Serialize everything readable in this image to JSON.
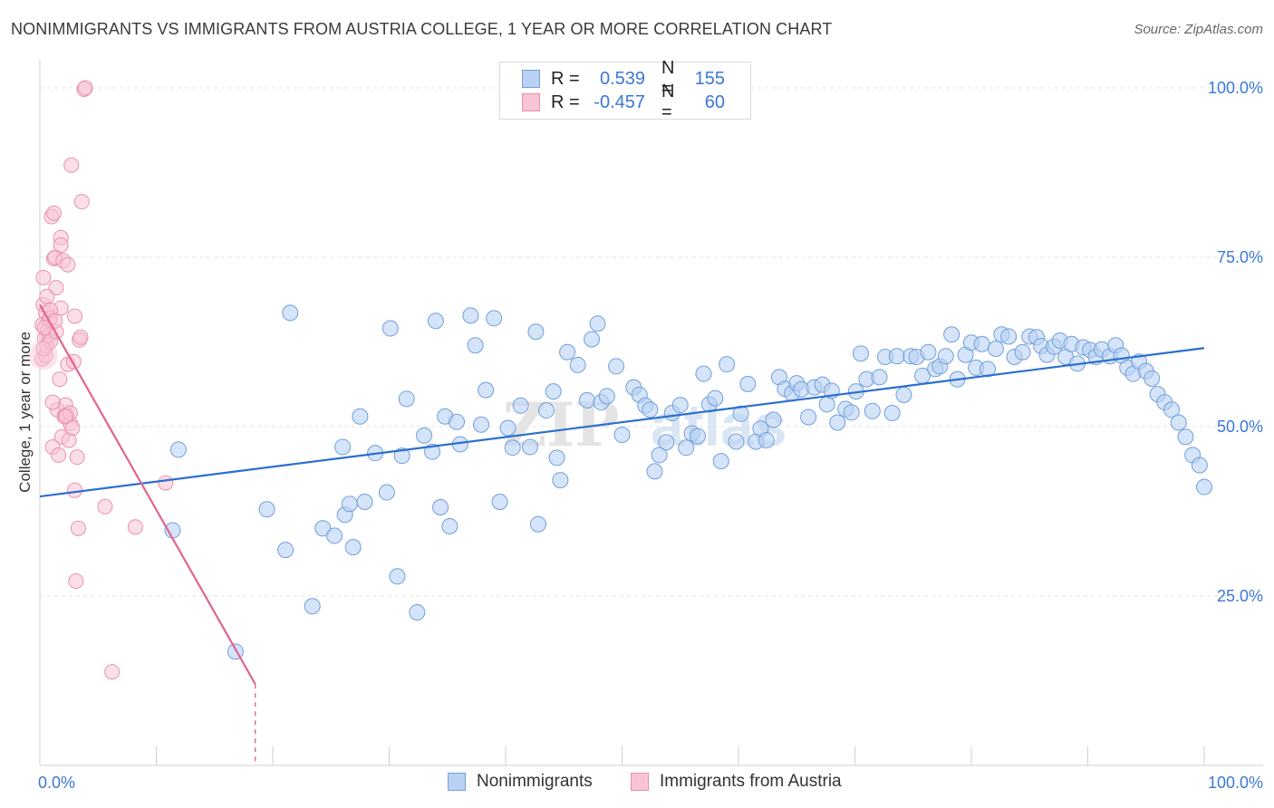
{
  "title": "NONIMMIGRANTS VS IMMIGRANTS FROM AUSTRIA COLLEGE, 1 YEAR OR MORE CORRELATION CHART",
  "source": "Source: ZipAtlas.com",
  "watermark": "ZIPatlas",
  "colors": {
    "blue_fill": "#b9d2f3",
    "blue_stroke": "#6f9fdc",
    "blue_line": "#2a6fce",
    "pink_fill": "#f8c4d4",
    "pink_stroke": "#ec8fae",
    "pink_line": "#e0648f",
    "value_text": "#3b78d8"
  },
  "legend": {
    "rows": [
      {
        "r_label": "R =",
        "r_value": "0.539",
        "n_label": "N =",
        "n_value": "155"
      },
      {
        "r_label": "R =",
        "r_value": "-0.457",
        "n_label": "N =",
        "n_value": "60"
      }
    ]
  },
  "bottom_legend": {
    "items": [
      "Nonimmigrants",
      "Immigrants from Austria"
    ]
  },
  "chart_data": {
    "type": "scatter",
    "title": "NONIMMIGRANTS VS IMMIGRANTS FROM AUSTRIA COLLEGE, 1 YEAR OR MORE CORRELATION CHART",
    "xlabel": "",
    "ylabel": "College, 1 year or more",
    "xlim": [
      0,
      100
    ],
    "ylim": [
      0,
      102
    ],
    "x_tick_labels": [
      "0.0%",
      "100.0%"
    ],
    "y_tick_labels": [
      "25.0%",
      "50.0%",
      "75.0%",
      "100.0%"
    ],
    "y_ticks": [
      25,
      50,
      75,
      100
    ],
    "grid": true,
    "series": [
      {
        "name": "Nonimmigrants",
        "r": 0.539,
        "n": 155,
        "trend": {
          "x0": 0,
          "y0": 39.7,
          "x1": 100,
          "y1": 61.6
        },
        "points": [
          [
            11.4,
            34.7
          ],
          [
            11.9,
            46.6
          ],
          [
            16.8,
            16.8
          ],
          [
            19.5,
            37.8
          ],
          [
            21.1,
            31.8
          ],
          [
            21.5,
            66.8
          ],
          [
            23.4,
            23.5
          ],
          [
            24.3,
            35.0
          ],
          [
            25.3,
            33.9
          ],
          [
            26.0,
            47.0
          ],
          [
            26.2,
            37.0
          ],
          [
            26.6,
            38.6
          ],
          [
            26.9,
            32.2
          ],
          [
            27.5,
            51.5
          ],
          [
            27.9,
            38.9
          ],
          [
            28.8,
            46.1
          ],
          [
            29.8,
            40.3
          ],
          [
            30.1,
            64.5
          ],
          [
            30.7,
            27.9
          ],
          [
            31.1,
            45.7
          ],
          [
            31.5,
            54.1
          ],
          [
            32.4,
            22.6
          ],
          [
            33.0,
            48.7
          ],
          [
            33.7,
            46.3
          ],
          [
            34.0,
            65.6
          ],
          [
            34.4,
            38.1
          ],
          [
            34.8,
            51.5
          ],
          [
            35.2,
            35.3
          ],
          [
            35.8,
            50.7
          ],
          [
            36.1,
            47.4
          ],
          [
            37.0,
            66.4
          ],
          [
            37.4,
            62.0
          ],
          [
            37.9,
            50.3
          ],
          [
            38.3,
            55.4
          ],
          [
            39.0,
            66.0
          ],
          [
            39.5,
            38.9
          ],
          [
            40.2,
            49.8
          ],
          [
            40.6,
            46.9
          ],
          [
            41.3,
            53.1
          ],
          [
            42.1,
            47.0
          ],
          [
            42.6,
            64.0
          ],
          [
            42.8,
            35.6
          ],
          [
            43.5,
            52.4
          ],
          [
            44.1,
            55.2
          ],
          [
            44.4,
            45.4
          ],
          [
            44.7,
            42.1
          ],
          [
            45.3,
            61.0
          ],
          [
            46.2,
            59.1
          ],
          [
            47.0,
            53.9
          ],
          [
            47.4,
            62.9
          ],
          [
            47.9,
            65.2
          ],
          [
            48.2,
            53.6
          ],
          [
            48.7,
            54.5
          ],
          [
            49.5,
            58.9
          ],
          [
            50.0,
            48.8
          ],
          [
            51.0,
            55.8
          ],
          [
            51.5,
            54.7
          ],
          [
            52.0,
            53.1
          ],
          [
            52.4,
            52.5
          ],
          [
            52.8,
            43.4
          ],
          [
            53.2,
            45.8
          ],
          [
            53.8,
            47.7
          ],
          [
            54.3,
            52.0
          ],
          [
            55.0,
            53.2
          ],
          [
            55.5,
            46.9
          ],
          [
            56.0,
            49.0
          ],
          [
            56.5,
            48.6
          ],
          [
            57.0,
            57.8
          ],
          [
            57.5,
            53.3
          ],
          [
            58.0,
            54.2
          ],
          [
            58.5,
            44.9
          ],
          [
            59.0,
            59.2
          ],
          [
            59.8,
            47.8
          ],
          [
            60.2,
            51.9
          ],
          [
            60.8,
            56.3
          ],
          [
            61.5,
            47.8
          ],
          [
            61.9,
            49.7
          ],
          [
            62.4,
            48.0
          ],
          [
            63.0,
            51.0
          ],
          [
            63.5,
            57.3
          ],
          [
            64.0,
            55.6
          ],
          [
            64.6,
            54.9
          ],
          [
            65.0,
            56.4
          ],
          [
            65.4,
            55.5
          ],
          [
            66.0,
            51.4
          ],
          [
            66.5,
            55.8
          ],
          [
            67.2,
            56.2
          ],
          [
            67.6,
            53.3
          ],
          [
            68.0,
            55.3
          ],
          [
            68.5,
            50.6
          ],
          [
            69.2,
            52.6
          ],
          [
            69.7,
            52.1
          ],
          [
            70.1,
            55.2
          ],
          [
            70.5,
            60.8
          ],
          [
            71.0,
            57.0
          ],
          [
            71.5,
            52.3
          ],
          [
            72.1,
            57.3
          ],
          [
            72.6,
            60.3
          ],
          [
            73.2,
            52.0
          ],
          [
            73.6,
            60.4
          ],
          [
            74.2,
            54.7
          ],
          [
            74.8,
            60.4
          ],
          [
            75.3,
            60.3
          ],
          [
            75.8,
            57.5
          ],
          [
            76.3,
            61.0
          ],
          [
            76.9,
            58.5
          ],
          [
            77.3,
            58.9
          ],
          [
            77.8,
            60.4
          ],
          [
            78.3,
            63.6
          ],
          [
            78.8,
            57.0
          ],
          [
            79.5,
            60.6
          ],
          [
            80.0,
            62.4
          ],
          [
            80.4,
            58.7
          ],
          [
            80.9,
            62.2
          ],
          [
            81.4,
            58.5
          ],
          [
            82.1,
            61.5
          ],
          [
            82.6,
            63.6
          ],
          [
            83.2,
            63.3
          ],
          [
            83.7,
            60.3
          ],
          [
            84.4,
            61.0
          ],
          [
            85.0,
            63.3
          ],
          [
            85.6,
            63.2
          ],
          [
            86.0,
            61.9
          ],
          [
            86.5,
            60.6
          ],
          [
            87.1,
            61.8
          ],
          [
            87.6,
            62.7
          ],
          [
            88.1,
            60.3
          ],
          [
            88.6,
            62.2
          ],
          [
            89.1,
            59.3
          ],
          [
            89.6,
            61.7
          ],
          [
            90.2,
            61.3
          ],
          [
            90.7,
            60.3
          ],
          [
            91.2,
            61.4
          ],
          [
            91.9,
            60.4
          ],
          [
            92.4,
            62.0
          ],
          [
            92.9,
            60.5
          ],
          [
            93.4,
            58.7
          ],
          [
            93.9,
            57.8
          ],
          [
            94.4,
            59.6
          ],
          [
            95.0,
            58.2
          ],
          [
            95.5,
            57.1
          ],
          [
            96.0,
            54.8
          ],
          [
            96.6,
            53.6
          ],
          [
            97.2,
            52.5
          ],
          [
            97.8,
            50.6
          ],
          [
            98.4,
            48.5
          ],
          [
            99.0,
            45.8
          ],
          [
            99.6,
            44.3
          ],
          [
            100.0,
            41.1
          ]
        ]
      },
      {
        "name": "Immigrants from Austria",
        "r": -0.457,
        "n": 60,
        "trend": {
          "x0": 0,
          "y0": 68.0,
          "x1": 18.5,
          "y1": 12.0,
          "dash_to_x": 18.5,
          "dash_to_y": 0
        },
        "points": [
          [
            0.2,
            60.0
          ],
          [
            0.2,
            65.0
          ],
          [
            0.3,
            72.0
          ],
          [
            0.3,
            68.0
          ],
          [
            0.4,
            63.0
          ],
          [
            0.5,
            66.8
          ],
          [
            0.6,
            62.0
          ],
          [
            0.7,
            64.2
          ],
          [
            0.8,
            65.8
          ],
          [
            0.8,
            63.5
          ],
          [
            0.9,
            62.6
          ],
          [
            0.9,
            66.0
          ],
          [
            1.0,
            81.0
          ],
          [
            1.1,
            47.0
          ],
          [
            1.2,
            81.5
          ],
          [
            1.2,
            74.8
          ],
          [
            1.3,
            75.0
          ],
          [
            1.4,
            64.0
          ],
          [
            1.4,
            70.5
          ],
          [
            1.5,
            52.5
          ],
          [
            1.6,
            45.8
          ],
          [
            1.7,
            57.0
          ],
          [
            1.8,
            77.9
          ],
          [
            1.8,
            76.8
          ],
          [
            1.8,
            67.5
          ],
          [
            1.9,
            48.5
          ],
          [
            2.0,
            74.5
          ],
          [
            2.1,
            51.5
          ],
          [
            2.2,
            53.2
          ],
          [
            2.3,
            51.7
          ],
          [
            2.4,
            73.9
          ],
          [
            2.4,
            59.2
          ],
          [
            2.5,
            48.0
          ],
          [
            2.6,
            50.5
          ],
          [
            2.6,
            52.0
          ],
          [
            2.7,
            88.6
          ],
          [
            2.8,
            49.8
          ],
          [
            2.9,
            59.6
          ],
          [
            3.0,
            66.3
          ],
          [
            3.0,
            40.6
          ],
          [
            3.1,
            27.2
          ],
          [
            3.2,
            45.5
          ],
          [
            3.3,
            35.0
          ],
          [
            3.4,
            62.8
          ],
          [
            3.5,
            63.2
          ],
          [
            3.6,
            83.2
          ],
          [
            3.8,
            99.8
          ],
          [
            3.9,
            100.0
          ],
          [
            5.6,
            38.2
          ],
          [
            6.2,
            13.8
          ],
          [
            8.2,
            35.2
          ],
          [
            10.8,
            41.7
          ],
          [
            0.5,
            60.5
          ],
          [
            0.6,
            69.2
          ],
          [
            0.9,
            67.2
          ],
          [
            1.3,
            65.6
          ],
          [
            0.4,
            64.6
          ],
          [
            2.2,
            51.5
          ],
          [
            1.1,
            53.6
          ],
          [
            0.3,
            61.5
          ]
        ]
      }
    ]
  }
}
